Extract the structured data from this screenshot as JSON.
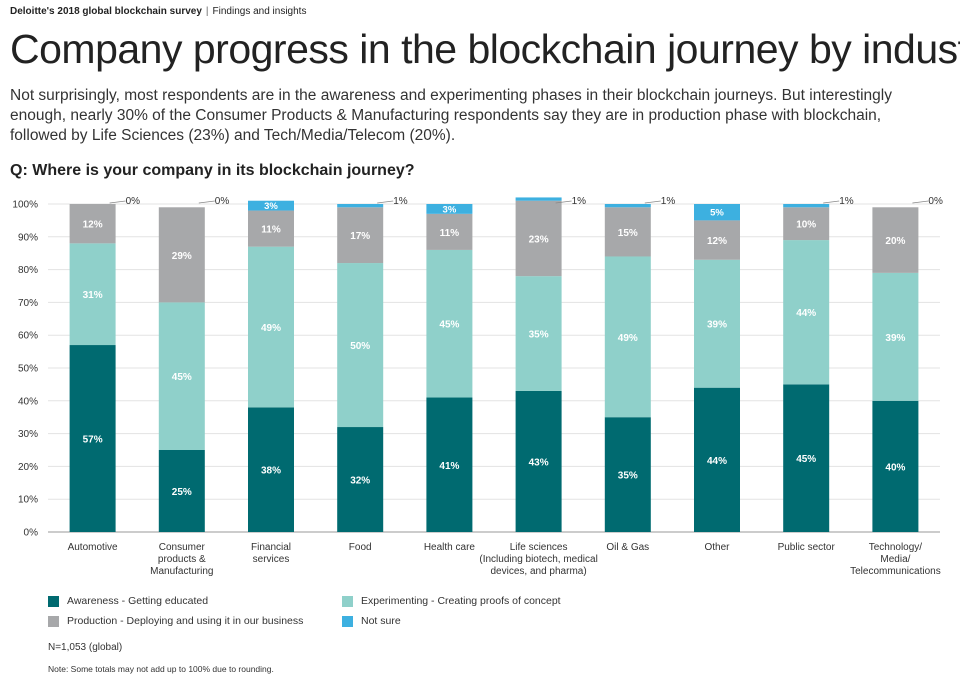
{
  "header": {
    "source": "Deloitte's 2018 global blockchain survey",
    "section": "Findings and insights"
  },
  "title": "Company progress in the blockchain journey by industry",
  "intro": "Not surprisingly, most respondents are in the awareness and experimenting phases in their blockchain journeys. But interestingly enough, nearly 30% of the Consumer Products & Manufacturing respondents say they are in production phase with blockchain, followed by Life Sciences (23%) and Tech/Media/Telecom (20%).",
  "question": "Q: Where is your company in its blockchain journey?",
  "chart_data": {
    "type": "bar",
    "stacked": true,
    "categories": [
      [
        "Automotive"
      ],
      [
        "Consumer",
        "products &",
        "Manufacturing"
      ],
      [
        "Financial",
        "services"
      ],
      [
        "Food"
      ],
      [
        "Health care"
      ],
      [
        "Life sciences",
        "(Including biotech, medical",
        "devices, and pharma)"
      ],
      [
        "Oil & Gas"
      ],
      [
        "Other"
      ],
      [
        "Public sector"
      ],
      [
        "Technology/",
        "Media/",
        "Telecommunications"
      ]
    ],
    "series": [
      {
        "name": "Awareness - Getting educated",
        "color": "#006a70",
        "values": [
          57,
          25,
          38,
          32,
          41,
          43,
          35,
          44,
          45,
          40
        ]
      },
      {
        "name": "Experimenting - Creating proofs of concept",
        "color": "#8fd0ca",
        "values": [
          31,
          45,
          49,
          50,
          45,
          35,
          49,
          39,
          44,
          39
        ]
      },
      {
        "name": "Production - Deploying and using it in our business",
        "color": "#a7a8aa",
        "values": [
          12,
          29,
          11,
          17,
          11,
          23,
          15,
          12,
          10,
          20
        ]
      },
      {
        "name": "Not sure",
        "color": "#3db0e0",
        "values": [
          0,
          0,
          3,
          1,
          3,
          1,
          1,
          5,
          1,
          0
        ]
      }
    ],
    "yticks": [
      "0%",
      "10%",
      "20%",
      "30%",
      "40%",
      "50%",
      "60%",
      "70%",
      "80%",
      "90%",
      "100%"
    ],
    "ylim": [
      0,
      100
    ],
    "grid": true,
    "legend_position": "bottom"
  },
  "notes": {
    "n": "N=1,053 (global)",
    "footnote": "Note: Some totals may not add up to 100% due to rounding."
  }
}
